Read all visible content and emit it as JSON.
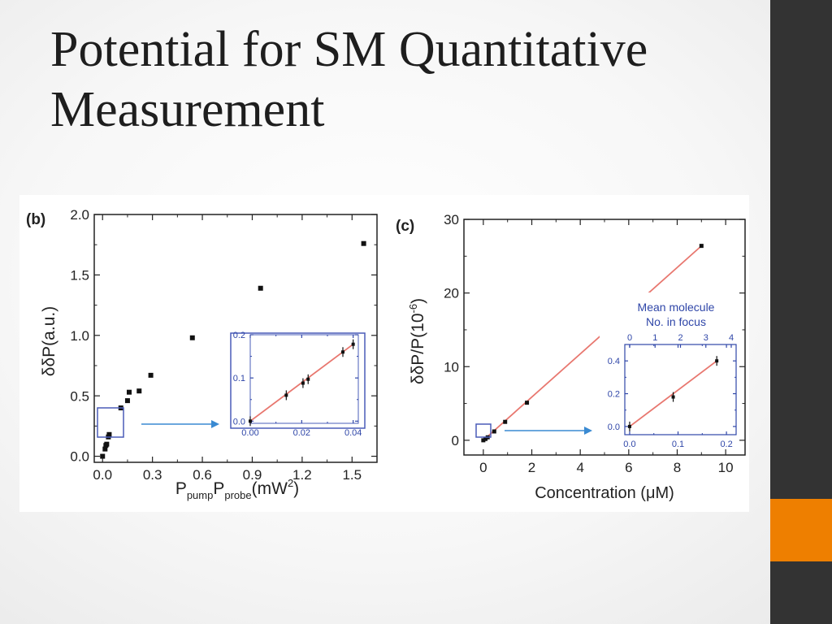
{
  "slide": {
    "title_line1": "Potential for SM Quantitative",
    "title_line2": "Measurement"
  },
  "colors": {
    "sidebar": "#333333",
    "accent": "#ee7f00",
    "fit_line": "#e8776f",
    "inset_frame": "#4a5cb8",
    "arrow": "#3a8ad2"
  },
  "chart_data": [
    {
      "type": "scatter",
      "panel_label": "(b)",
      "xlabel_main": "P",
      "xlabel_sub1": "pump",
      "xlabel_mid": "P",
      "xlabel_sub2": "probe",
      "xlabel_unit": "(mW",
      "xlabel_sup": "2",
      "xlabel_end": ")",
      "ylabel": "δδP(a.u.)",
      "xlim": [
        -0.05,
        1.65
      ],
      "ylim": [
        -0.05,
        2.0
      ],
      "x_ticks": [
        "0.0",
        "0.3",
        "0.6",
        "0.9",
        "1.2",
        "1.5"
      ],
      "y_ticks": [
        "0.0",
        "0.5",
        "1.0",
        "1.5",
        "2.0"
      ],
      "points": [
        {
          "x": 0.0,
          "y": 0.0
        },
        {
          "x": 0.015,
          "y": 0.06
        },
        {
          "x": 0.02,
          "y": 0.09
        },
        {
          "x": 0.025,
          "y": 0.1
        },
        {
          "x": 0.035,
          "y": 0.16
        },
        {
          "x": 0.04,
          "y": 0.18
        },
        {
          "x": 0.11,
          "y": 0.4
        },
        {
          "x": 0.15,
          "y": 0.46
        },
        {
          "x": 0.16,
          "y": 0.53
        },
        {
          "x": 0.22,
          "y": 0.54
        },
        {
          "x": 0.29,
          "y": 0.67
        },
        {
          "x": 0.54,
          "y": 0.98
        },
        {
          "x": 0.95,
          "y": 1.39
        },
        {
          "x": 1.57,
          "y": 1.76
        }
      ],
      "inset": {
        "xlim": [
          0.0,
          0.042
        ],
        "ylim": [
          -0.005,
          0.2
        ],
        "x_ticks": [
          "0.00",
          "0.02",
          "0.04"
        ],
        "y_ticks": [
          "0.0",
          "0.1",
          "0.2"
        ],
        "points": [
          {
            "x": 0.0,
            "y": 0.0
          },
          {
            "x": 0.014,
            "y": 0.06
          },
          {
            "x": 0.0205,
            "y": 0.088
          },
          {
            "x": 0.0225,
            "y": 0.097
          },
          {
            "x": 0.036,
            "y": 0.16
          },
          {
            "x": 0.04,
            "y": 0.178
          }
        ],
        "fit": [
          [
            0.0,
            0.0
          ],
          [
            0.04,
            0.178
          ]
        ]
      }
    },
    {
      "type": "scatter",
      "panel_label": "(c)",
      "xlabel": "Concentration (μM)",
      "ylabel": "δδP/P(10",
      "ylabel_sup": "-6",
      "ylabel_end": ")",
      "xlim": [
        -0.8,
        10.8
      ],
      "ylim": [
        -2,
        30
      ],
      "x_ticks": [
        "0",
        "2",
        "4",
        "6",
        "8",
        "10"
      ],
      "y_ticks": [
        "0",
        "10",
        "20",
        "30"
      ],
      "points": [
        {
          "x": 0.0,
          "y": 0.0
        },
        {
          "x": 0.09,
          "y": 0.18
        },
        {
          "x": 0.18,
          "y": 0.4
        },
        {
          "x": 0.45,
          "y": 1.2
        },
        {
          "x": 0.9,
          "y": 2.5
        },
        {
          "x": 1.8,
          "y": 5.1
        },
        {
          "x": 9.0,
          "y": 26.4
        }
      ],
      "fit": [
        [
          0.0,
          0.0
        ],
        [
          9.0,
          26.4
        ]
      ],
      "inset": {
        "title_line1": "Mean molecule",
        "title_line2": "No. in focus",
        "xlim": [
          -0.01,
          0.22
        ],
        "ylim": [
          -0.05,
          0.5
        ],
        "top_xlim": [
          0,
          4
        ],
        "x_ticks": [
          "0.0",
          "0.1",
          "0.2"
        ],
        "y_ticks": [
          "0.0",
          "0.2",
          "0.4"
        ],
        "top_ticks": [
          "0",
          "1",
          "2",
          "3",
          "4"
        ],
        "points": [
          {
            "x": 0.0,
            "y": 0.0
          },
          {
            "x": 0.09,
            "y": 0.18
          },
          {
            "x": 0.18,
            "y": 0.4
          }
        ],
        "fit": [
          [
            0.0,
            0.0
          ],
          [
            0.18,
            0.4
          ]
        ]
      }
    }
  ]
}
